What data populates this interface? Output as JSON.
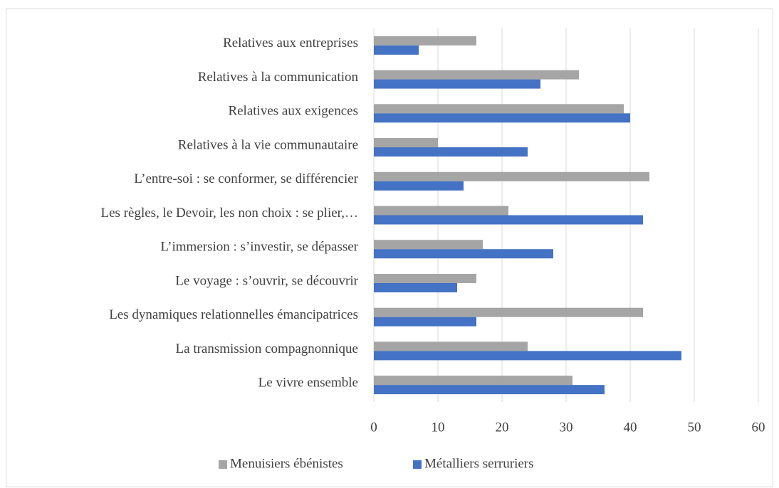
{
  "chart_data": {
    "type": "hbar",
    "categories": [
      "Relatives aux entreprises",
      "Relatives à la communication",
      "Relatives aux exigences",
      "Relatives à la vie communautaire",
      "L’entre-soi : se conformer, se différencier",
      "Les règles, le Devoir, les non choix : se plier,…",
      "L’immersion : s’investir, se dépasser",
      "Le voyage : s’ouvrir, se découvrir",
      "Les dynamiques relationnelles émancipatrices",
      "La transmission compagnonnique",
      "Le vivre ensemble"
    ],
    "series": [
      {
        "name": "Menuisiers ébénistes",
        "color": "#a5a5a5",
        "values": [
          16,
          32,
          39,
          10,
          43,
          21,
          17,
          16,
          42,
          24,
          31
        ]
      },
      {
        "name": "Métalliers serruriers",
        "color": "#4472c4",
        "values": [
          7,
          26,
          40,
          24,
          14,
          42,
          28,
          13,
          16,
          48,
          36
        ]
      }
    ],
    "xlim": [
      0,
      60
    ],
    "xticks": [
      0,
      10,
      20,
      30,
      40,
      50,
      60
    ],
    "grid": true,
    "legend": "bottom"
  }
}
